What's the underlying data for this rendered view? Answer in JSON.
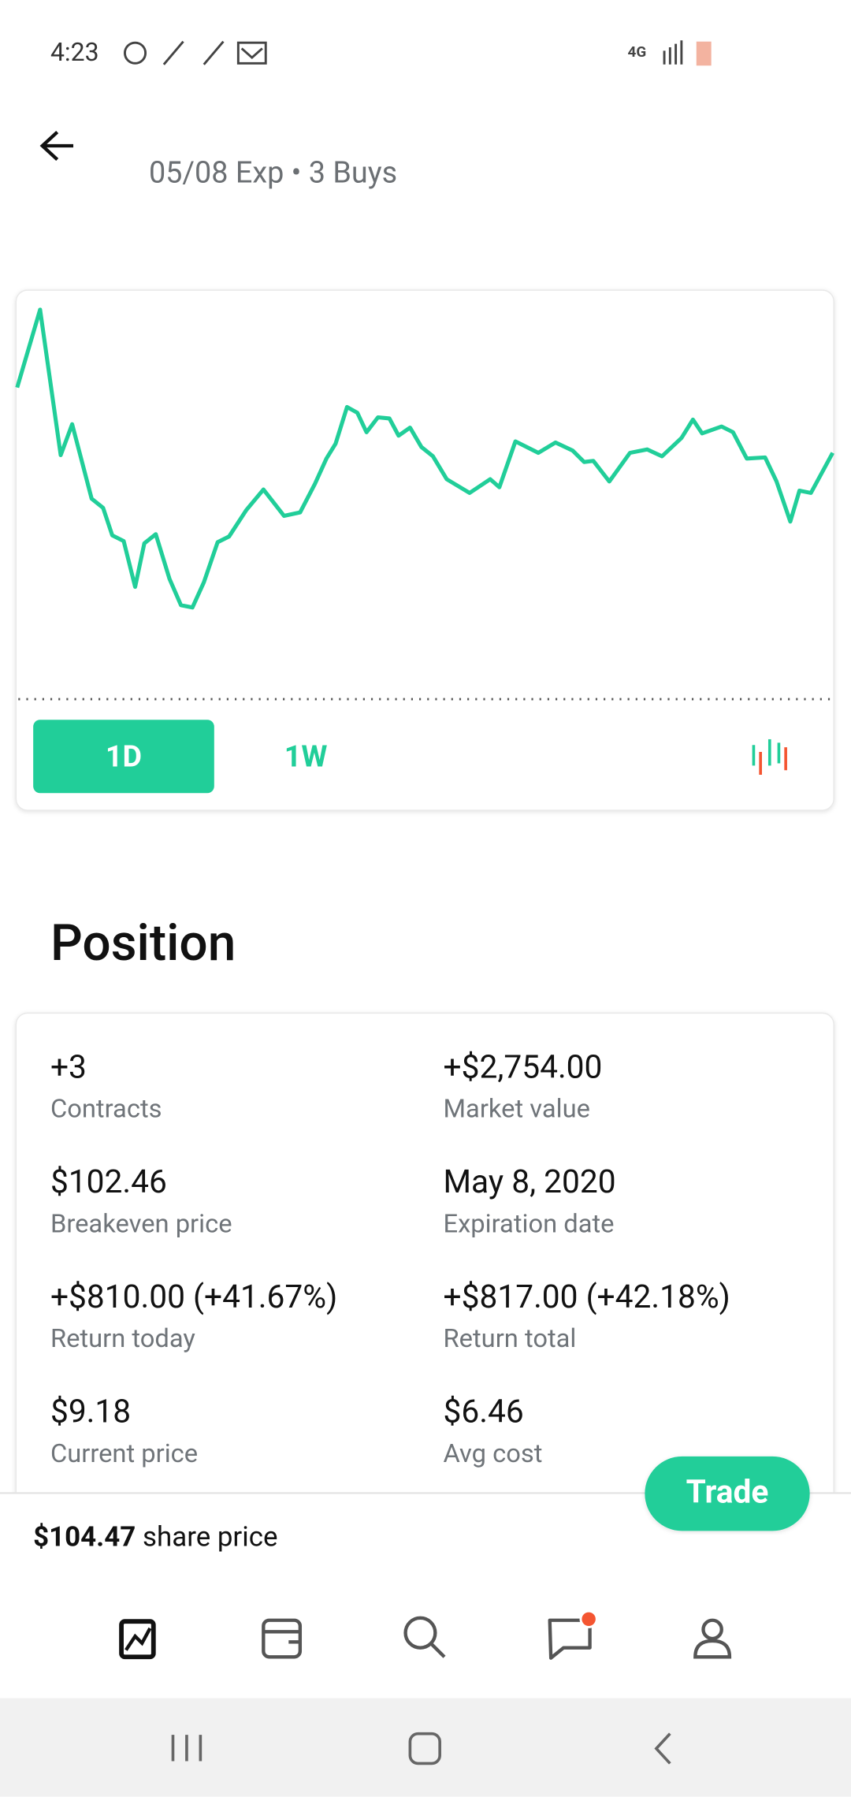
{
  "status_bar": {
    "time": "4:23"
  },
  "header": {
    "subtitle": "05/08 Exp • 3 Buys"
  },
  "chart": {
    "tabs": [
      "1D",
      "1W"
    ]
  },
  "position": {
    "title": "Position",
    "items": [
      {
        "value": "+3",
        "label": "Contracts"
      },
      {
        "value": "+$2,754.00",
        "label": "Market value"
      },
      {
        "value": "$102.46",
        "label": "Breakeven price"
      },
      {
        "value": "May 8, 2020",
        "label": "Expiration date"
      },
      {
        "value": "+$810.00 (+41.67%)",
        "label": "Return today"
      },
      {
        "value": "+$817.00 (+42.18%)",
        "label": "Return total"
      },
      {
        "value": "$9.18",
        "label": "Current price"
      },
      {
        "value": "$6.46",
        "label": "Avg cost"
      }
    ]
  },
  "footer": {
    "share_price": "$104.47",
    "share_price_label": "share price"
  },
  "trade_button": "Trade"
}
